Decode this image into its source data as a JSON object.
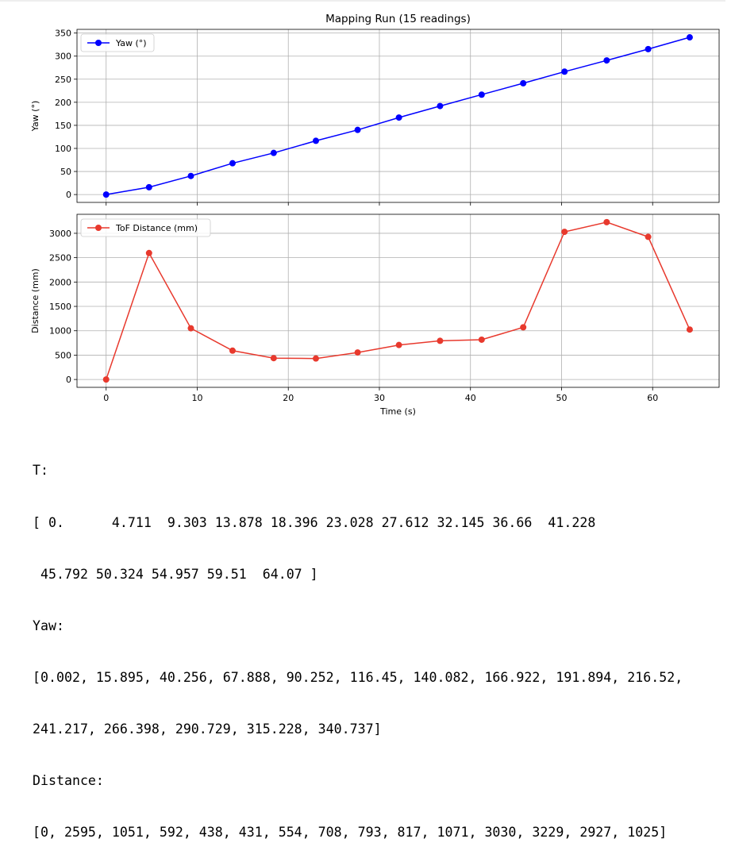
{
  "chart_data": [
    {
      "type": "line",
      "title": "Mapping Run (15 readings)",
      "xlabel": "",
      "ylabel": "Yaw (°)",
      "x": [
        0,
        4.711,
        9.303,
        13.878,
        18.396,
        23.028,
        27.612,
        32.145,
        36.66,
        41.228,
        45.792,
        50.324,
        54.957,
        59.51,
        64.07
      ],
      "series": [
        {
          "name": "Yaw (°)",
          "color": "#0000ff",
          "marker": "circle",
          "values": [
            0.002,
            15.895,
            40.256,
            67.888,
            90.252,
            116.45,
            140.082,
            166.922,
            191.894,
            216.52,
            241.217,
            266.398,
            290.729,
            315.228,
            340.737
          ]
        }
      ],
      "xlim": [
        -3.2,
        67.3
      ],
      "ylim": [
        -17,
        358
      ],
      "xticks": [
        0,
        10,
        20,
        30,
        40,
        50,
        60
      ],
      "yticks": [
        0,
        50,
        100,
        150,
        200,
        250,
        300,
        350
      ],
      "show_xtick_labels": false,
      "grid": true,
      "legend": "upper-left"
    },
    {
      "type": "line",
      "title": "",
      "xlabel": "Time (s)",
      "ylabel": "Distance (mm)",
      "x": [
        0,
        4.711,
        9.303,
        13.878,
        18.396,
        23.028,
        27.612,
        32.145,
        36.66,
        41.228,
        45.792,
        50.324,
        54.957,
        59.51,
        64.07
      ],
      "series": [
        {
          "name": "ToF Distance (mm)",
          "color": "#e8392d",
          "marker": "circle",
          "values": [
            0,
            2595,
            1051,
            592,
            438,
            431,
            554,
            708,
            793,
            817,
            1071,
            3030,
            3229,
            2927,
            1025
          ]
        }
      ],
      "xlim": [
        -3.2,
        67.3
      ],
      "ylim": [
        -161,
        3390
      ],
      "xticks": [
        0,
        10,
        20,
        30,
        40,
        50,
        60
      ],
      "yticks": [
        0,
        500,
        1000,
        1500,
        2000,
        2500,
        3000
      ],
      "show_xtick_labels": true,
      "grid": true,
      "legend": "upper-left"
    }
  ],
  "console": {
    "lines": [
      "T:",
      "[ 0.      4.711  9.303 13.878 18.396 23.028 27.612 32.145 36.66  41.228",
      " 45.792 50.324 54.957 59.51  64.07 ]",
      "Yaw:",
      "[0.002, 15.895, 40.256, 67.888, 90.252, 116.45, 140.082, 166.922, 191.894, 216.52,",
      "241.217, 266.398, 290.729, 315.228, 340.737]",
      "Distance:",
      "[0, 2595, 1051, 592, 438, 431, 554, 708, 793, 817, 1071, 3030, 3229, 2927, 1025]"
    ]
  }
}
